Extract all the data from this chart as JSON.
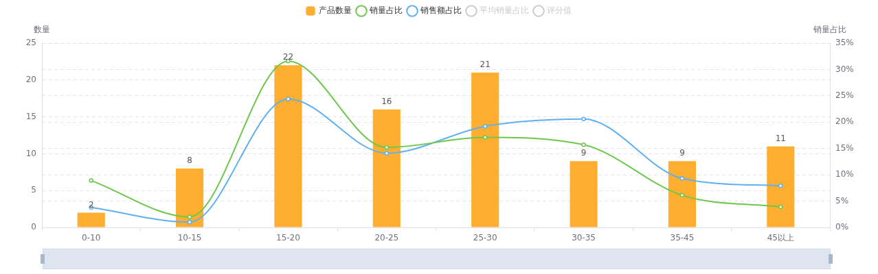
{
  "chart_data": {
    "type": "bar",
    "categories": [
      "0-10",
      "10-15",
      "15-20",
      "20-25",
      "25-30",
      "30-35",
      "35-45",
      "45以上"
    ],
    "series": [
      {
        "name": "产品数量",
        "color": "#ffae2f",
        "values": [
          2,
          8,
          22,
          16,
          21,
          9,
          9,
          11
        ],
        "value_labels": [
          "2",
          "8",
          "22",
          "16",
          "21",
          "9",
          "9",
          "11"
        ]
      },
      {
        "name": "销量占比",
        "type": "line",
        "axis": "y2",
        "color": "#6cc74b",
        "values": [
          8.9,
          2.0,
          31.6,
          15.2,
          17.1,
          15.7,
          6.1,
          3.9
        ]
      },
      {
        "name": "销售额占比",
        "type": "line",
        "axis": "y2",
        "color": "#5eb0f2",
        "values": [
          3.8,
          1.0,
          24.4,
          14.1,
          19.2,
          20.6,
          9.3,
          7.9
        ]
      },
      {
        "name": "平均销量占比",
        "type": "line",
        "axis": "y2",
        "color": "#cccccc",
        "values": [
          null,
          null,
          null,
          null,
          null,
          null,
          null,
          null
        ]
      },
      {
        "name": "评分值",
        "type": "line",
        "axis": "y2",
        "color": "#cccccc",
        "values": [
          null,
          null,
          null,
          null,
          null,
          null,
          null,
          null
        ]
      }
    ],
    "ylabel": "数量",
    "y2label": "销量占比",
    "ylim": [
      0,
      25
    ],
    "yticks": [
      0,
      5,
      10,
      15,
      20,
      25
    ],
    "y2lim": [
      0,
      35
    ],
    "y2ticks": [
      {
        "value": 0,
        "label": "0%"
      },
      {
        "value": 5,
        "label": "5%"
      },
      {
        "value": 10,
        "label": "10%"
      },
      {
        "value": 15,
        "label": "15%"
      },
      {
        "value": 20,
        "label": "20%"
      },
      {
        "value": 25,
        "label": "25%"
      },
      {
        "value": 30,
        "label": "30%"
      },
      {
        "value": 35,
        "label": "35%"
      }
    ],
    "grid": "y",
    "legend": "top",
    "marker": "circle"
  }
}
